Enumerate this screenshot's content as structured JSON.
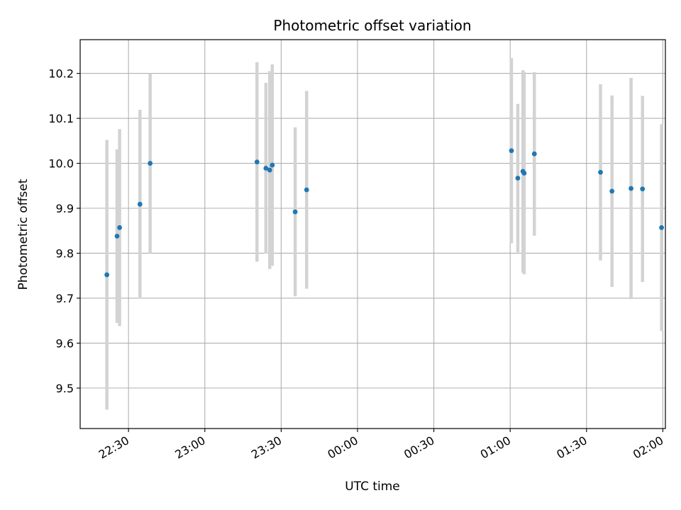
{
  "chart_data": {
    "type": "scatter",
    "title": "Photometric offset variation",
    "xlabel": "UTC time",
    "ylabel": "Photometric offset",
    "grid": true,
    "legend": "none",
    "x_is_time": true,
    "xlim": [
      "22:11",
      "02:01"
    ],
    "ylim": [
      9.41,
      10.275
    ],
    "x_ticks": [
      "22:30",
      "23:00",
      "23:30",
      "00:00",
      "00:30",
      "01:00",
      "01:30",
      "02:00"
    ],
    "y_ticks": [
      9.5,
      9.6,
      9.7,
      9.8,
      9.9,
      10.0,
      10.1,
      10.2
    ],
    "colors": {
      "point": "#1f77b4",
      "errorbar": "#d3d3d3",
      "grid": "#b0b0b0"
    },
    "points": [
      {
        "t": "22:21:30",
        "y": 9.752,
        "err": 0.3
      },
      {
        "t": "22:25:30",
        "y": 9.838,
        "err": 0.193
      },
      {
        "t": "22:26:30",
        "y": 9.857,
        "err": 0.219
      },
      {
        "t": "22:34:30",
        "y": 9.909,
        "err": 0.21
      },
      {
        "t": "22:38:30",
        "y": 10.0,
        "err": 0.2
      },
      {
        "t": "23:20:30",
        "y": 10.003,
        "err": 0.222
      },
      {
        "t": "23:24:00",
        "y": 9.989,
        "err": 0.19
      },
      {
        "t": "23:25:30",
        "y": 9.985,
        "err": 0.22
      },
      {
        "t": "23:26:30",
        "y": 9.996,
        "err": 0.224
      },
      {
        "t": "23:35:30",
        "y": 9.892,
        "err": 0.188
      },
      {
        "t": "23:40:00",
        "y": 9.941,
        "err": 0.22
      },
      {
        "t": "01:00:30",
        "y": 10.028,
        "err": 0.206
      },
      {
        "t": "01:03:00",
        "y": 9.967,
        "err": 0.165
      },
      {
        "t": "01:05:00",
        "y": 9.982,
        "err": 0.225
      },
      {
        "t": "01:05:30",
        "y": 9.978,
        "err": 0.225
      },
      {
        "t": "01:09:30",
        "y": 10.021,
        "err": 0.182
      },
      {
        "t": "01:35:30",
        "y": 9.98,
        "err": 0.196
      },
      {
        "t": "01:40:00",
        "y": 9.938,
        "err": 0.213
      },
      {
        "t": "01:47:30",
        "y": 9.944,
        "err": 0.246
      },
      {
        "t": "01:52:00",
        "y": 9.943,
        "err": 0.207
      },
      {
        "t": "01:59:30",
        "y": 9.857,
        "err": 0.23
      }
    ]
  }
}
